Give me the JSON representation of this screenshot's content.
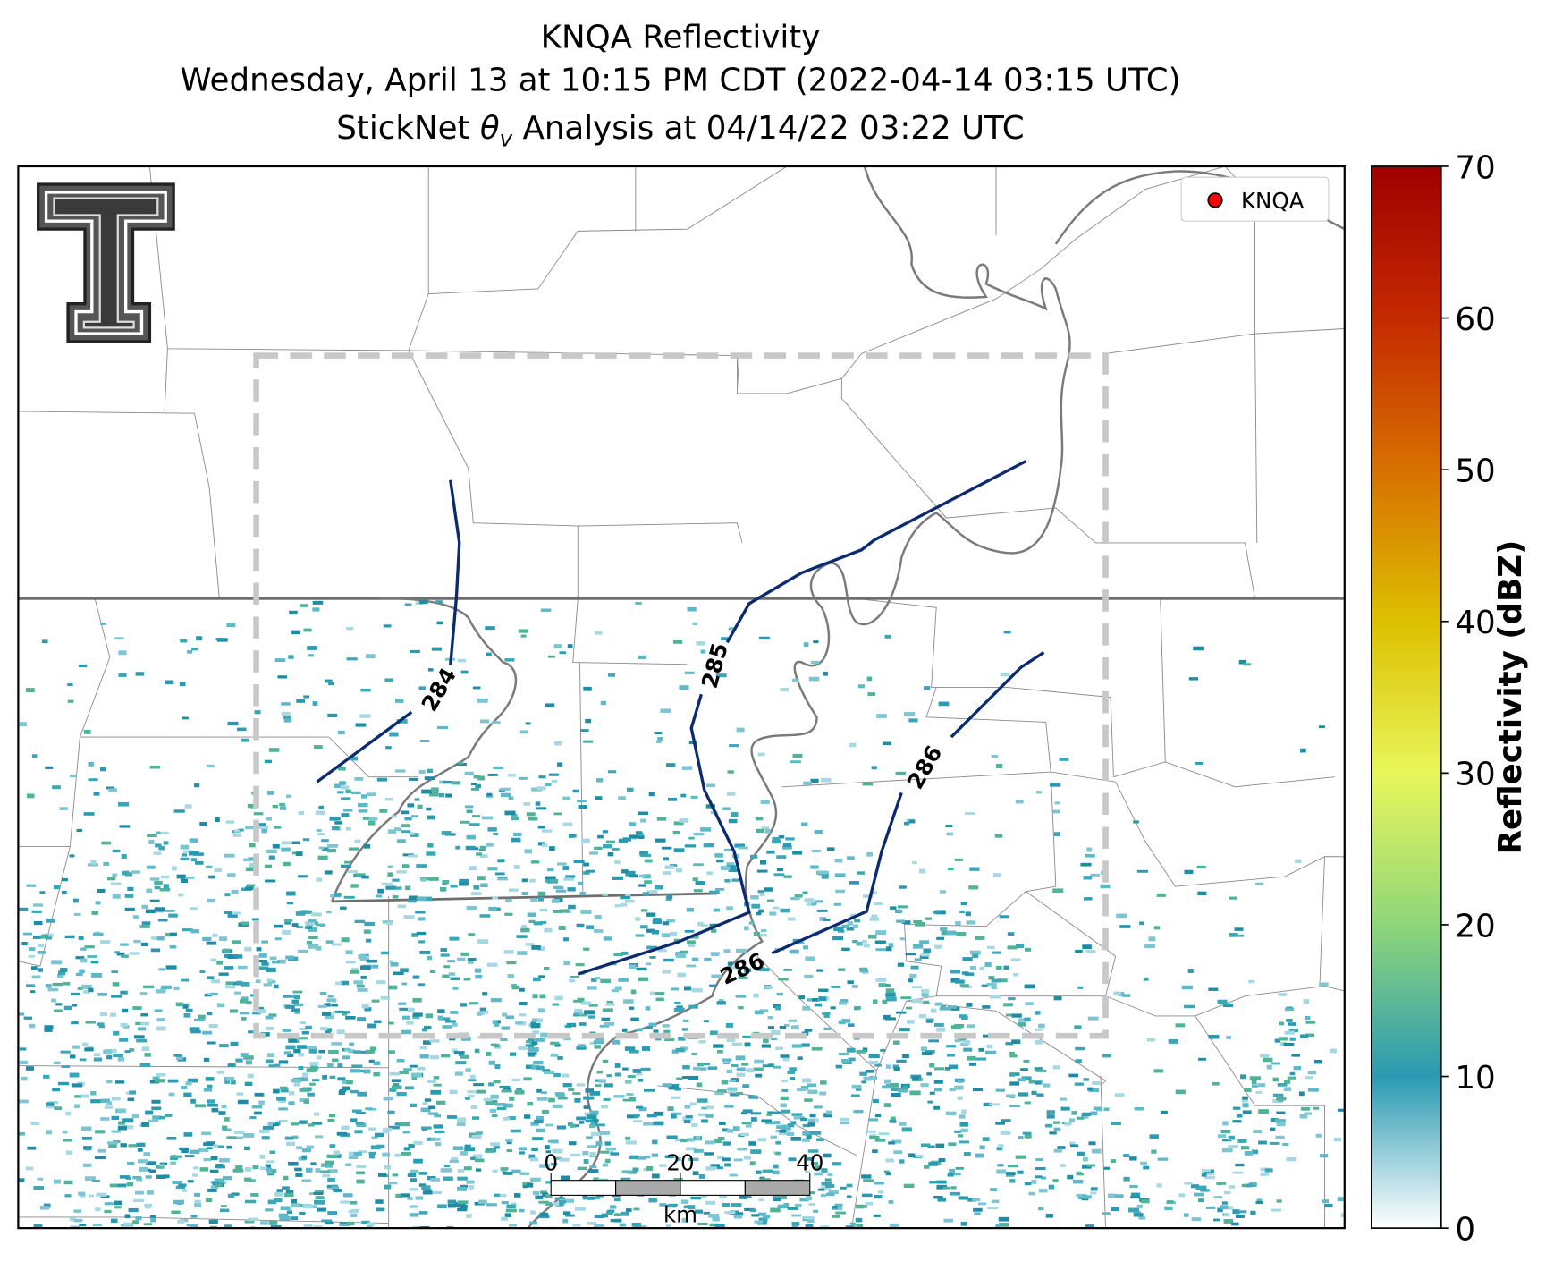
{
  "title": {
    "line1": "KNQA Reflectivity",
    "line2": "Wednesday, April 13 at 10:15 PM CDT (2022-04-14 03:15 UTC)",
    "line3_prefix": "StickNet ",
    "line3_symbol": "θ",
    "line3_subscript": "v",
    "line3_suffix": " Analysis at 04/14/22 03:22 UTC"
  },
  "legend": {
    "label": "KNQA",
    "marker_color": "#ff0000"
  },
  "colorbar": {
    "label": "Reflectivity (dBZ)",
    "lim": [
      0,
      70
    ],
    "ticks": [
      0,
      10,
      20,
      30,
      40,
      50,
      60,
      70
    ],
    "colors": [
      "#ffffff",
      "#2a9ab2",
      "#8fd67a",
      "#e8f65a",
      "#dcc000",
      "#d87000",
      "#c42a00",
      "#a00000"
    ]
  },
  "contours": {
    "levels": [
      284,
      285,
      286
    ],
    "color": "#0b2a6f",
    "labels": [
      284,
      285,
      286,
      286
    ]
  },
  "scale_bar": {
    "ticks": [
      0,
      20,
      40
    ],
    "unit": "km"
  }
}
